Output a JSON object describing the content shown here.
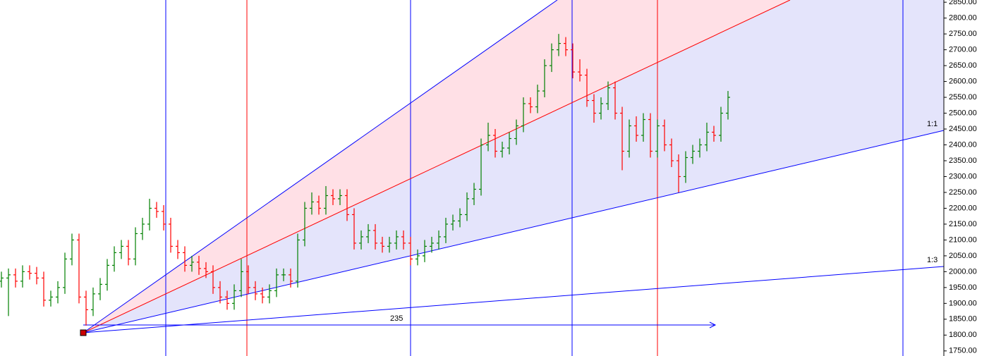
{
  "chart_data": {
    "type": "ohlc",
    "up_color": "#008000",
    "down_color": "#ff0000",
    "ylim": [
      1734,
      2857
    ],
    "yticks": [
      {
        "value": 1750,
        "label": "1750.00"
      },
      {
        "value": 1800,
        "label": "1800.00"
      },
      {
        "value": 1850,
        "label": "1850.00"
      },
      {
        "value": 1900,
        "label": "1900.00"
      },
      {
        "value": 1950,
        "label": "1950.00"
      },
      {
        "value": 2000,
        "label": "2000.00"
      },
      {
        "value": 2050,
        "label": "2050.00"
      },
      {
        "value": 2100,
        "label": "2100.00"
      },
      {
        "value": 2150,
        "label": "2150.00"
      },
      {
        "value": 2200,
        "label": "2200.00"
      },
      {
        "value": 2250,
        "label": "2250.00"
      },
      {
        "value": 2300,
        "label": "2300.00"
      },
      {
        "value": 2350,
        "label": "2350.00"
      },
      {
        "value": 2400,
        "label": "2400.00"
      },
      {
        "value": 2450,
        "label": "2450.00"
      },
      {
        "value": 2500,
        "label": "2500.00"
      },
      {
        "value": 2550,
        "label": "2550.00"
      },
      {
        "value": 2600,
        "label": "2600.00"
      },
      {
        "value": 2650,
        "label": "2650.00"
      },
      {
        "value": 2700,
        "label": "2700.00"
      },
      {
        "value": 2750,
        "label": "2750.00"
      },
      {
        "value": 2800,
        "label": "2800.00"
      },
      {
        "value": 2850,
        "label": "2850.00"
      }
    ],
    "annotations": [
      "1:1",
      "1:3",
      "235"
    ],
    "open": [
      1970,
      1980,
      1990,
      1970,
      2000,
      1995,
      1980,
      1910,
      1920,
      1950,
      2040,
      2100,
      1920,
      1880,
      1930,
      1960,
      2020,
      2060,
      2080,
      2040,
      2120,
      2150,
      2200,
      2190,
      2150,
      2080,
      2060,
      2020,
      2030,
      2010,
      2000,
      1950,
      1920,
      1900,
      1940,
      2000,
      1950,
      1930,
      1920,
      1940,
      1990,
      1990,
      1970,
      2100,
      2200,
      2220,
      2200,
      2240,
      2230,
      2240,
      2180,
      2090,
      2110,
      2130,
      2090,
      2080,
      2090,
      2110,
      2090,
      2040,
      2050,
      2080,
      2090,
      2110,
      2150,
      2160,
      2180,
      2230,
      2260,
      2400,
      2430,
      2380,
      2390,
      2420,
      2460,
      2530,
      2520,
      2570,
      2650,
      2700,
      2720,
      2700,
      2630,
      2620,
      2540,
      2500,
      2530,
      2580,
      2500,
      2380,
      2460,
      2430,
      2480,
      2380,
      2460,
      2400,
      2350,
      2300,
      2360,
      2380,
      2400,
      2440,
      2430,
      2500
    ],
    "high": [
      2000,
      2010,
      2010,
      2020,
      2020,
      2015,
      2000,
      1940,
      1970,
      2060,
      2120,
      2120,
      1940,
      1950,
      1980,
      2040,
      2080,
      2100,
      2100,
      2140,
      2170,
      2230,
      2220,
      2210,
      2170,
      2100,
      2080,
      2050,
      2050,
      2030,
      2020,
      1970,
      1940,
      1960,
      2040,
      2020,
      1970,
      1950,
      1960,
      2010,
      2010,
      2010,
      2120,
      2220,
      2250,
      2240,
      2270,
      2260,
      2260,
      2260,
      2200,
      2130,
      2150,
      2150,
      2110,
      2110,
      2130,
      2130,
      2110,
      2070,
      2100,
      2110,
      2130,
      2170,
      2180,
      2200,
      2250,
      2280,
      2420,
      2470,
      2450,
      2410,
      2440,
      2480,
      2550,
      2550,
      2590,
      2670,
      2720,
      2750,
      2740,
      2720,
      2670,
      2640,
      2560,
      2550,
      2600,
      2600,
      2520,
      2480,
      2490,
      2500,
      2500,
      2480,
      2480,
      2420,
      2370,
      2380,
      2400,
      2420,
      2470,
      2460,
      2520,
      2570
    ],
    "low": [
      1950,
      1860,
      1950,
      1950,
      1975,
      1960,
      1890,
      1890,
      1900,
      1930,
      2020,
      1900,
      1830,
      1860,
      1910,
      1940,
      2000,
      2040,
      2020,
      2020,
      2100,
      2130,
      2170,
      2130,
      2060,
      2040,
      2000,
      2000,
      1990,
      1980,
      1930,
      1900,
      1880,
      1880,
      1920,
      1930,
      1910,
      1900,
      1900,
      1920,
      1970,
      1950,
      1950,
      2080,
      2180,
      2180,
      2180,
      2210,
      2210,
      2160,
      2070,
      2070,
      2090,
      2070,
      2060,
      2060,
      2070,
      2070,
      2020,
      2020,
      2030,
      2060,
      2070,
      2090,
      2130,
      2140,
      2160,
      2210,
      2240,
      2380,
      2360,
      2360,
      2370,
      2400,
      2440,
      2500,
      2500,
      2550,
      2630,
      2680,
      2680,
      2610,
      2600,
      2520,
      2470,
      2480,
      2510,
      2480,
      2320,
      2360,
      2410,
      2410,
      2360,
      2360,
      2380,
      2330,
      2250,
      2280,
      2340,
      2360,
      2380,
      2410,
      2410,
      2480
    ],
    "close": [
      1980,
      1990,
      1970,
      2000,
      1995,
      1980,
      1910,
      1920,
      1950,
      2040,
      2100,
      1920,
      1880,
      1930,
      1960,
      2020,
      2060,
      2080,
      2040,
      2120,
      2150,
      2200,
      2190,
      2150,
      2080,
      2060,
      2020,
      2030,
      2010,
      2000,
      1950,
      1920,
      1900,
      1940,
      2000,
      1950,
      1930,
      1920,
      1940,
      1990,
      1990,
      1970,
      2100,
      2200,
      2220,
      2200,
      2240,
      2230,
      2240,
      2180,
      2090,
      2110,
      2130,
      2090,
      2080,
      2090,
      2110,
      2090,
      2040,
      2050,
      2080,
      2090,
      2110,
      2150,
      2160,
      2180,
      2230,
      2260,
      2400,
      2430,
      2380,
      2390,
      2420,
      2460,
      2530,
      2520,
      2570,
      2650,
      2700,
      2720,
      2700,
      2630,
      2620,
      2540,
      2500,
      2530,
      2580,
      2500,
      2380,
      2460,
      2430,
      2480,
      2380,
      2460,
      2400,
      2350,
      2300,
      2360,
      2380,
      2400,
      2440,
      2430,
      2500,
      2550
    ]
  }
}
